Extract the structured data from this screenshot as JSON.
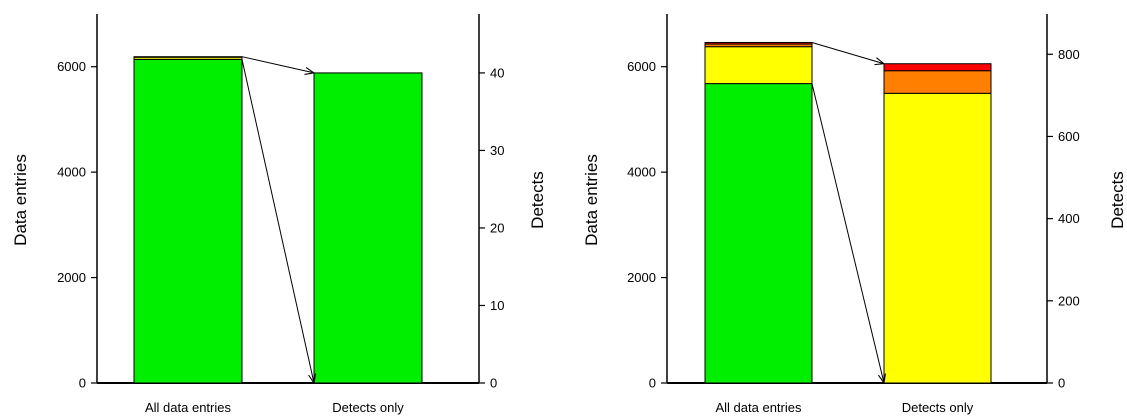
{
  "chart_data": [
    {
      "type": "bar",
      "stacked": true,
      "categories": [
        "All data entries",
        "Detects only"
      ],
      "ylabel_left": "Data entries",
      "ylabel_right": "Detects",
      "ylim_left": [
        0,
        7000
      ],
      "ylim_right": [
        0,
        47.6
      ],
      "yticks_left": [
        0,
        2000,
        4000,
        6000
      ],
      "yticks_right": [
        0,
        10,
        20,
        30,
        40
      ],
      "grid": false,
      "bars": [
        {
          "category": "All data entries",
          "axis": "left",
          "segments": [
            {
              "value": 6140,
              "color": "#00ee00"
            },
            {
              "value": 40,
              "color": "#ffff00"
            },
            {
              "value": 10,
              "color": "#ff8000"
            }
          ]
        },
        {
          "category": "Detects only",
          "axis": "right",
          "segments": [
            {
              "value": 40,
              "color": "#00ee00"
            }
          ]
        }
      ],
      "arrows": [
        {
          "from_bar": "All data entries",
          "from_level": "top",
          "to_bar": "Detects only",
          "to_level": "top"
        },
        {
          "from_bar": "All data entries",
          "from_level": "top_of_first_segment",
          "to_bar": "Detects only",
          "to_level": "bottom"
        }
      ]
    },
    {
      "type": "bar",
      "stacked": true,
      "categories": [
        "All data entries",
        "Detects only"
      ],
      "ylabel_left": "Data entries",
      "ylabel_right": "Detects",
      "ylim_left": [
        0,
        7000
      ],
      "ylim_right": [
        0,
        898
      ],
      "yticks_left": [
        0,
        2000,
        4000,
        6000
      ],
      "yticks_right": [
        0,
        200,
        400,
        600,
        800
      ],
      "grid": false,
      "bars": [
        {
          "category": "All data entries",
          "axis": "left",
          "segments": [
            {
              "value": 5680,
              "color": "#00ee00"
            },
            {
              "value": 700,
              "color": "#ffff00"
            },
            {
              "value": 50,
              "color": "#ff8000"
            },
            {
              "value": 30,
              "color": "#ff0000"
            }
          ]
        },
        {
          "category": "Detects only",
          "axis": "right",
          "segments": [
            {
              "value": 705,
              "color": "#ffff00"
            },
            {
              "value": 55,
              "color": "#ff8000"
            },
            {
              "value": 17,
              "color": "#ff0000"
            }
          ]
        }
      ],
      "arrows": [
        {
          "from_bar": "All data entries",
          "from_level": "top",
          "to_bar": "Detects only",
          "to_level": "top"
        },
        {
          "from_bar": "All data entries",
          "from_level": "top_of_first_segment",
          "to_bar": "Detects only",
          "to_level": "bottom"
        }
      ]
    }
  ]
}
